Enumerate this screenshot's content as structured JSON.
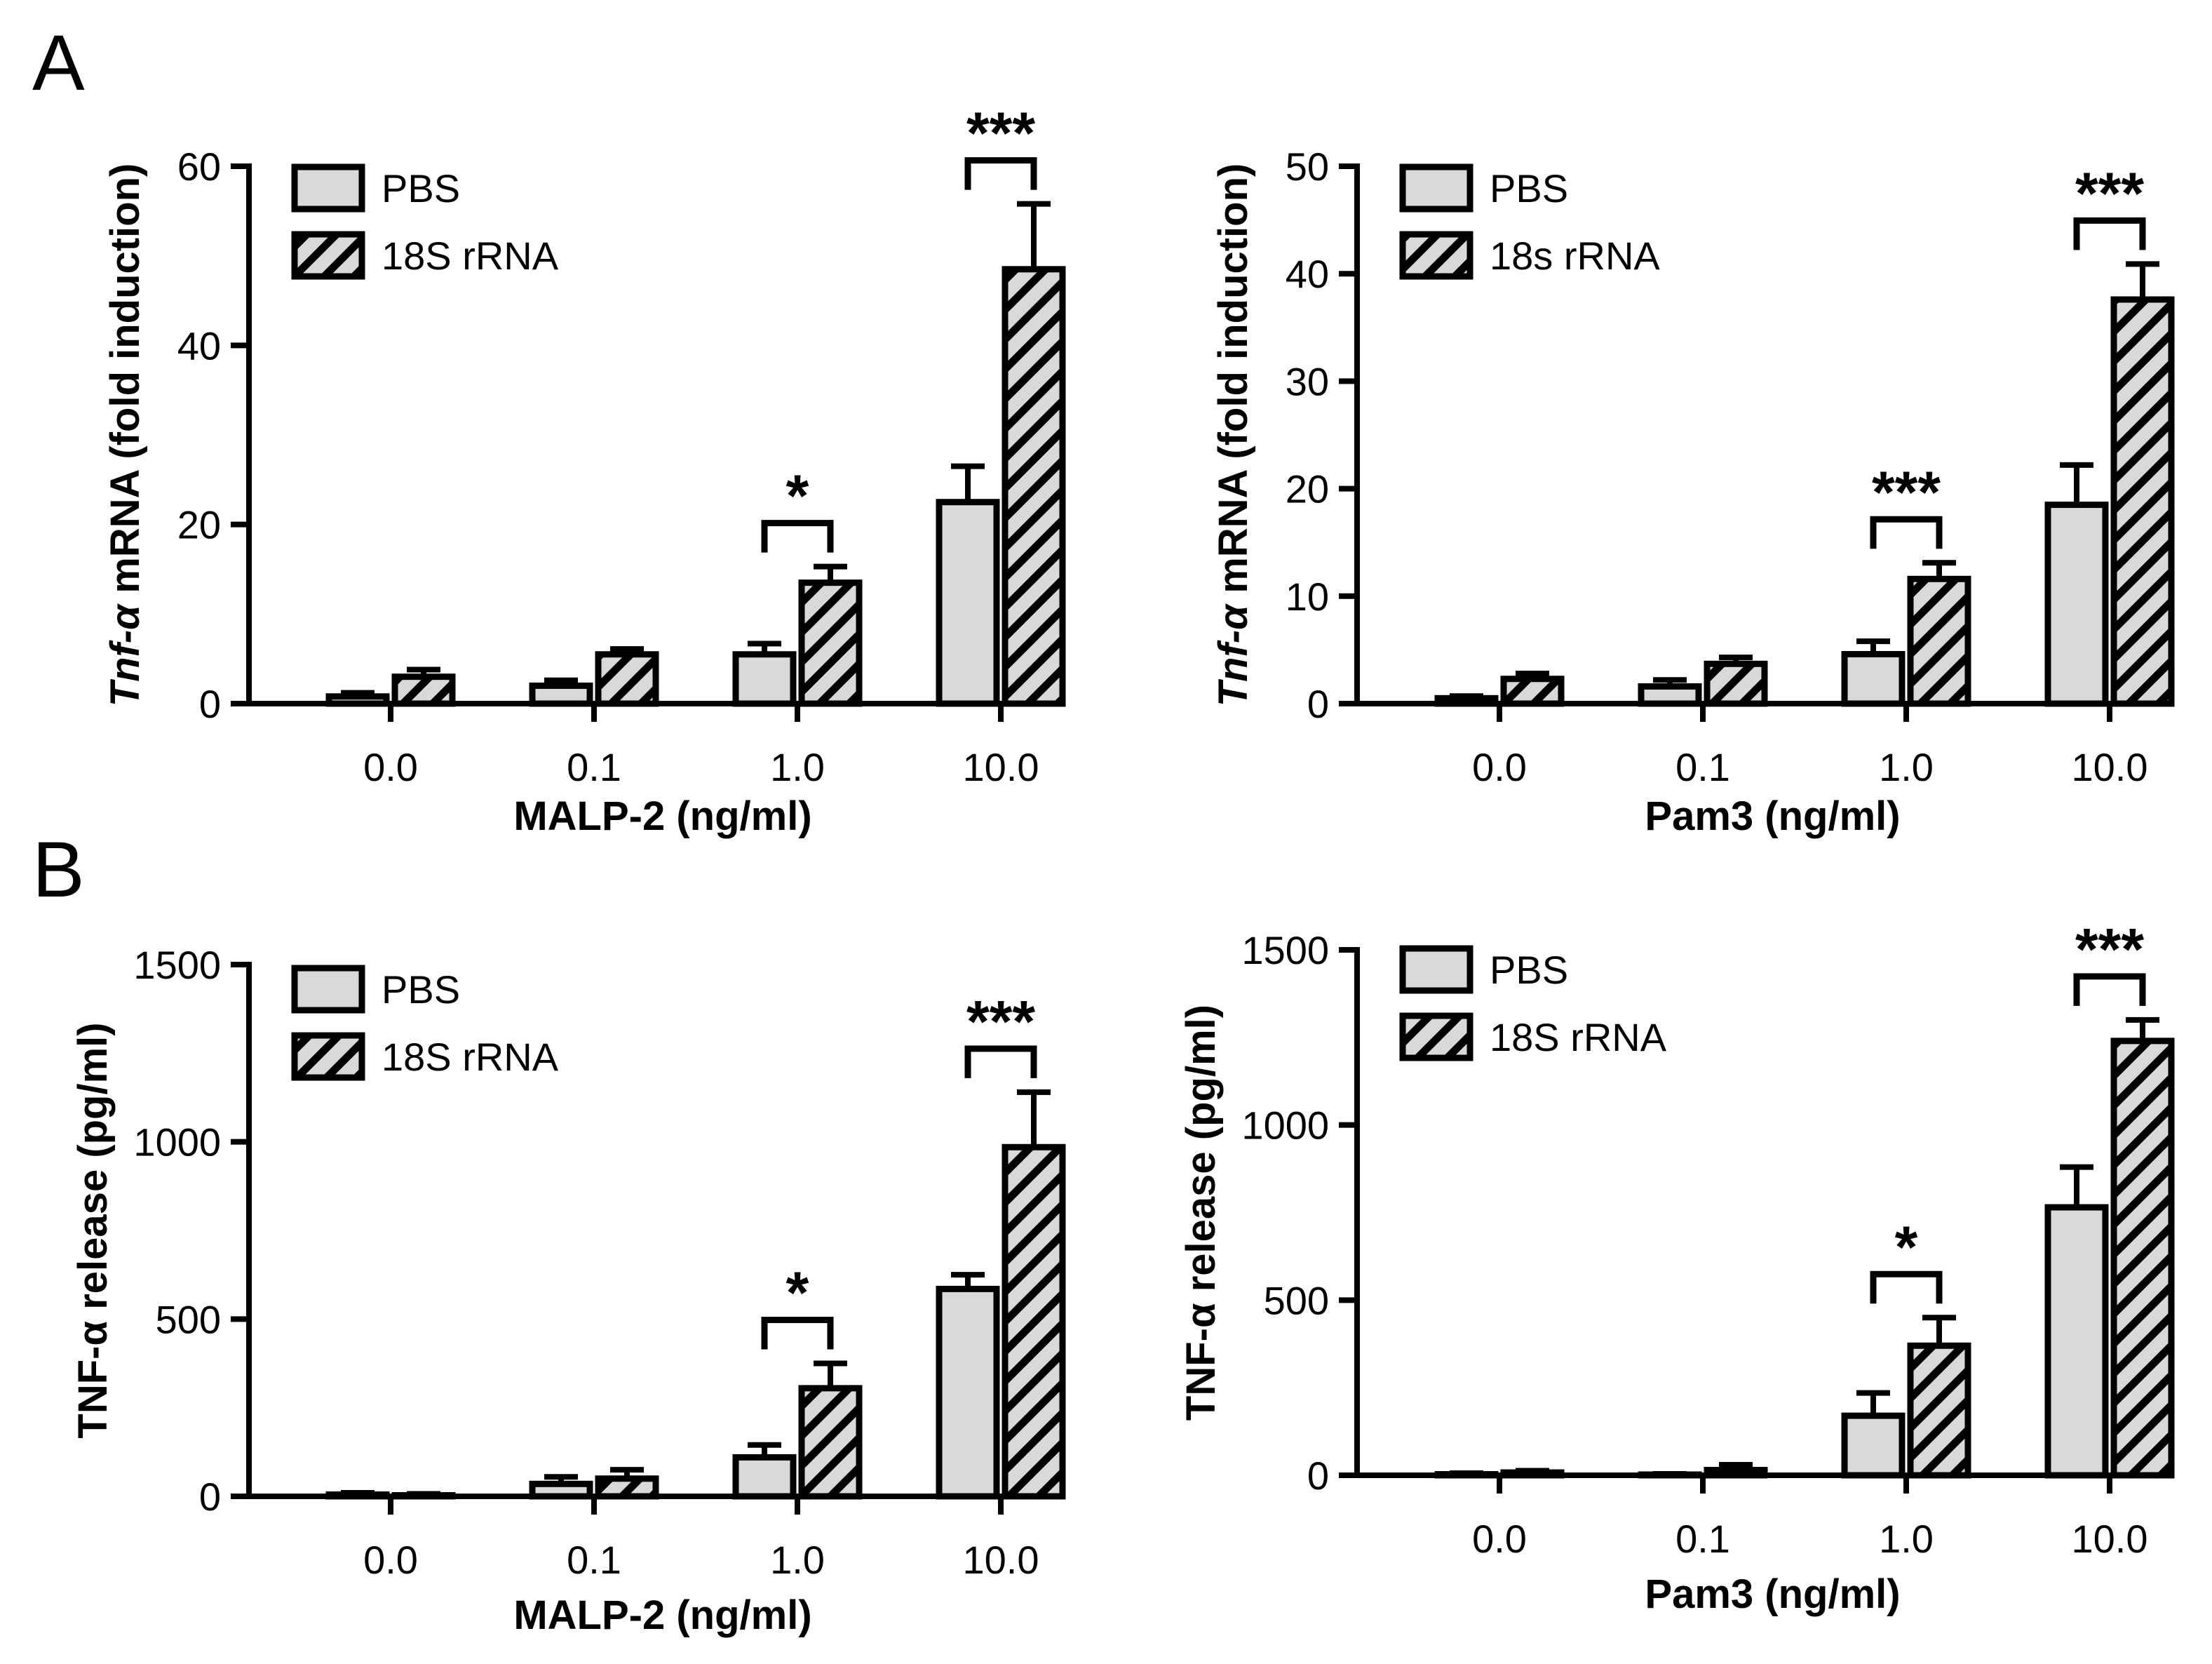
{
  "panel_labels": [
    "A",
    "B"
  ],
  "colors": {
    "bar_fill": "#d9d9d9",
    "stroke": "#000000",
    "background": "#ffffff"
  },
  "chart_data": [
    {
      "id": "A-left",
      "type": "bar",
      "panel": "A",
      "title": "",
      "xlabel": "MALP-2 (ng/ml)",
      "ylabel": "Tnf-α mRNA (fold induction)",
      "ylabel_italic_part": "Tnf-α",
      "ylabel_rest": " mRNA (fold induction)",
      "ylim": [
        0,
        60
      ],
      "yticks": [
        0,
        20,
        40,
        60
      ],
      "categories": [
        "0.0",
        "0.1",
        "1.0",
        "10.0"
      ],
      "series": [
        {
          "name": "PBS",
          "pattern": "solid",
          "values": [
            0.8,
            2.0,
            5.5,
            22.5
          ],
          "errors": [
            0.4,
            0.6,
            1.2,
            4.0
          ]
        },
        {
          "name": "18S rRNA",
          "pattern": "hatched",
          "values": [
            3.0,
            5.5,
            13.5,
            48.5
          ],
          "errors": [
            0.8,
            0.6,
            1.8,
            7.3
          ]
        }
      ],
      "significance": [
        {
          "category": "1.0",
          "label": "*"
        },
        {
          "category": "10.0",
          "label": "***"
        }
      ],
      "legend": "top-left"
    },
    {
      "id": "A-right",
      "type": "bar",
      "panel": "A",
      "title": "",
      "xlabel": "Pam3 (ng/ml)",
      "ylabel": "Tnf-α mRNA (fold induction)",
      "ylabel_italic_part": "Tnf-α",
      "ylabel_rest": " mRNA (fold induction)",
      "ylim": [
        0,
        50
      ],
      "yticks": [
        0,
        10,
        20,
        30,
        40,
        50
      ],
      "categories": [
        "0.0",
        "0.1",
        "1.0",
        "10.0"
      ],
      "series": [
        {
          "name": "PBS",
          "pattern": "solid",
          "values": [
            0.5,
            1.6,
            4.6,
            18.5
          ],
          "errors": [
            0.2,
            0.6,
            1.2,
            3.7
          ]
        },
        {
          "name": "18s rRNA",
          "pattern": "hatched",
          "values": [
            2.3,
            3.7,
            11.6,
            37.6
          ],
          "errors": [
            0.5,
            0.6,
            1.5,
            3.3
          ]
        }
      ],
      "significance": [
        {
          "category": "1.0",
          "label": "***"
        },
        {
          "category": "10.0",
          "label": "***"
        }
      ],
      "legend": "top-left"
    },
    {
      "id": "B-left",
      "type": "bar",
      "panel": "B",
      "title": "",
      "xlabel": "MALP-2 (ng/ml)",
      "ylabel": "TNF-α release (pg/ml)",
      "ylabel_italic_part": "",
      "ylabel_rest": "TNF-α release (pg/ml)",
      "ylim": [
        0,
        1500
      ],
      "yticks": [
        0,
        500,
        1000,
        1500
      ],
      "categories": [
        "0.0",
        "0.1",
        "1.0",
        "10.0"
      ],
      "series": [
        {
          "name": "PBS",
          "pattern": "solid",
          "values": [
            5,
            35,
            110,
            585
          ],
          "errors": [
            5,
            20,
            35,
            40
          ]
        },
        {
          "name": "18S rRNA",
          "pattern": "hatched",
          "values": [
            3,
            50,
            305,
            985
          ],
          "errors": [
            4,
            25,
            70,
            155
          ]
        }
      ],
      "significance": [
        {
          "category": "1.0",
          "label": "*"
        },
        {
          "category": "10.0",
          "label": "***"
        }
      ],
      "legend": "top-left"
    },
    {
      "id": "B-right",
      "type": "bar",
      "panel": "B",
      "title": "",
      "xlabel": "Pam3 (ng/ml)",
      "ylabel": "TNF-α release (pg/ml)",
      "ylabel_italic_part": "",
      "ylabel_rest": "TNF-α release (pg/ml)",
      "ylim": [
        0,
        1500
      ],
      "yticks": [
        0,
        500,
        1000,
        1500
      ],
      "categories": [
        "0.0",
        "0.1",
        "1.0",
        "10.0"
      ],
      "series": [
        {
          "name": "PBS",
          "pattern": "solid",
          "values": [
            3,
            2,
            170,
            765
          ],
          "errors": [
            3,
            2,
            65,
            115
          ]
        },
        {
          "name": "18S rRNA",
          "pattern": "hatched",
          "values": [
            8,
            15,
            370,
            1240
          ],
          "errors": [
            5,
            15,
            80,
            60
          ]
        }
      ],
      "significance": [
        {
          "category": "1.0",
          "label": "*"
        },
        {
          "category": "10.0",
          "label": "***"
        }
      ],
      "legend": "top-left"
    }
  ]
}
